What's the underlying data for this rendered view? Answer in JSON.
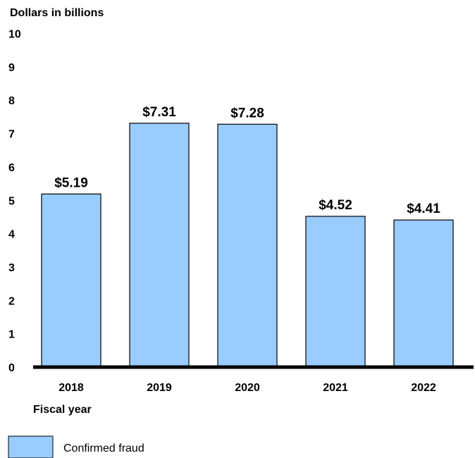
{
  "chart_data": {
    "type": "bar",
    "ylabel": "Dollars in billions",
    "xlabel": "Fiscal year",
    "categories": [
      "2018",
      "2019",
      "2020",
      "2021",
      "2022"
    ],
    "series": [
      {
        "name": "Confirmed fraud",
        "values": [
          5.19,
          7.31,
          7.28,
          4.52,
          4.41
        ],
        "labels": [
          "$5.19",
          "$7.31",
          "$7.28",
          "$4.52",
          "$4.41"
        ],
        "color": "#99ccff"
      }
    ],
    "ylim": [
      0,
      10
    ],
    "yticks": [
      "0",
      "1",
      "2",
      "3",
      "4",
      "5",
      "6",
      "7",
      "8",
      "9",
      "10"
    ],
    "grid": false,
    "legend_position": "bottom-left"
  }
}
